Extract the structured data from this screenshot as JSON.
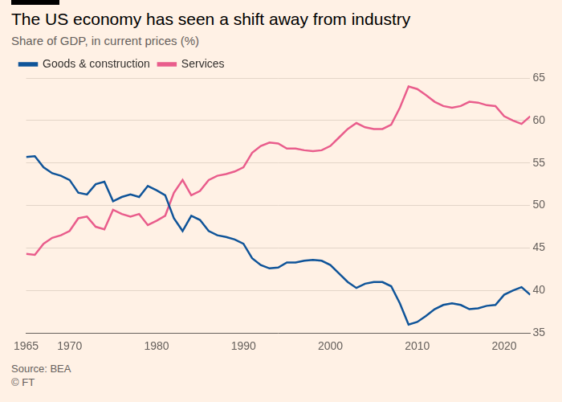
{
  "chart_data": {
    "type": "line",
    "title": "The US economy has seen a shift away from industry",
    "subtitle": "Share of GDP, in current prices (%)",
    "source": "Source: BEA",
    "credit": "© FT",
    "x": [
      1965,
      1966,
      1967,
      1968,
      1969,
      1970,
      1971,
      1972,
      1973,
      1974,
      1975,
      1976,
      1977,
      1978,
      1979,
      1980,
      1981,
      1982,
      1983,
      1984,
      1985,
      1986,
      1987,
      1988,
      1989,
      1990,
      1991,
      1992,
      1993,
      1994,
      1995,
      1996,
      1997,
      1998,
      1999,
      2000,
      2001,
      2002,
      2003,
      2004,
      2005,
      2006,
      2007,
      2008,
      2009,
      2010,
      2011,
      2012,
      2013,
      2014,
      2015,
      2016,
      2017,
      2018,
      2019,
      2020,
      2021,
      2022,
      2023
    ],
    "series": [
      {
        "name": "Goods & construction",
        "color": "#0f5499",
        "values": [
          55.7,
          55.8,
          54.5,
          53.8,
          53.5,
          53.0,
          51.5,
          51.3,
          52.5,
          52.8,
          50.5,
          51.0,
          51.3,
          51.0,
          52.3,
          51.8,
          51.2,
          48.5,
          47.0,
          48.8,
          48.3,
          47.0,
          46.5,
          46.3,
          46.0,
          45.5,
          43.8,
          43.0,
          42.6,
          42.7,
          43.3,
          43.3,
          43.5,
          43.6,
          43.5,
          43.0,
          42.0,
          41.0,
          40.3,
          40.8,
          41.0,
          41.0,
          40.5,
          38.5,
          36.0,
          36.3,
          37.0,
          37.8,
          38.3,
          38.5,
          38.3,
          37.8,
          37.9,
          38.2,
          38.3,
          39.5,
          40.0,
          40.4,
          39.5
        ]
      },
      {
        "name": "Services",
        "color": "#e95d8c",
        "values": [
          44.3,
          44.2,
          45.5,
          46.2,
          46.5,
          47.0,
          48.5,
          48.7,
          47.5,
          47.2,
          49.5,
          49.0,
          48.7,
          49.0,
          47.7,
          48.2,
          48.8,
          51.5,
          53.0,
          51.2,
          51.7,
          53.0,
          53.5,
          53.7,
          54.0,
          54.5,
          56.2,
          57.0,
          57.4,
          57.3,
          56.7,
          56.7,
          56.5,
          56.4,
          56.5,
          57.0,
          58.0,
          59.0,
          59.7,
          59.2,
          59.0,
          59.0,
          59.5,
          61.5,
          64.0,
          63.7,
          63.0,
          62.2,
          61.7,
          61.5,
          61.7,
          62.2,
          62.1,
          61.8,
          61.7,
          60.5,
          60.0,
          59.6,
          60.5
        ]
      }
    ],
    "xlim": [
      1965,
      2023
    ],
    "xticks": [
      1965,
      1970,
      1980,
      1990,
      2000,
      2010,
      2020
    ],
    "ylim": [
      35,
      65
    ],
    "yticks": [
      35,
      40,
      45,
      50,
      55,
      60,
      65
    ],
    "grid": true,
    "legend": "top-left"
  }
}
